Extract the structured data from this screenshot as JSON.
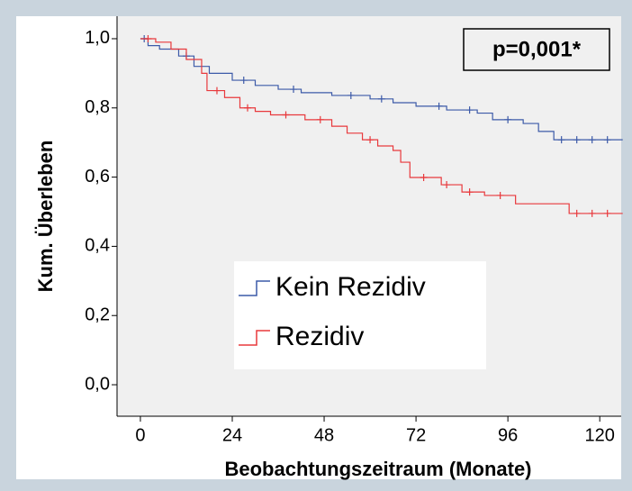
{
  "chart_data": {
    "type": "kaplan-meier",
    "xlabel": "Beobachtungszeitraum (Monate)",
    "ylabel": "Kum. Überleben",
    "annotation": "p=0,001*",
    "xlim": [
      -6.1,
      125.6
    ],
    "ylim": [
      -0.091,
      1.065
    ],
    "xticks": [
      0,
      24,
      48,
      72,
      96,
      120
    ],
    "yticks": [
      {
        "value": 0,
        "label": "0,0"
      },
      {
        "value": 0.2,
        "label": "0,2"
      },
      {
        "value": 0.4,
        "label": "0,4"
      },
      {
        "value": 0.6,
        "label": "0,6"
      },
      {
        "value": 0.8,
        "label": "0,8"
      },
      {
        "value": 1,
        "label": "1,0"
      }
    ],
    "legend": "lower center",
    "series": [
      {
        "name": "Kein Rezidiv",
        "color": "#3c5aa8",
        "x": [
          0,
          2,
          5,
          10,
          14,
          18,
          24,
          30,
          36,
          42,
          50,
          60,
          66,
          72,
          80,
          88,
          92,
          100,
          104,
          108,
          126
        ],
        "values": [
          1.0,
          0.98,
          0.97,
          0.95,
          0.92,
          0.9,
          0.88,
          0.865,
          0.854,
          0.844,
          0.836,
          0.826,
          0.815,
          0.805,
          0.794,
          0.785,
          0.766,
          0.755,
          0.732,
          0.708,
          0.708
        ],
        "censored_x": [
          1,
          12,
          27,
          40,
          55,
          63,
          78,
          86,
          96,
          110,
          114,
          118,
          122
        ],
        "censored_values": [
          1.0,
          0.95,
          0.88,
          0.854,
          0.836,
          0.826,
          0.805,
          0.794,
          0.766,
          0.708,
          0.708,
          0.708,
          0.708
        ]
      },
      {
        "name": "Rezidiv",
        "color": "#e8393c",
        "x": [
          0,
          4,
          8,
          12,
          16,
          17.4,
          22,
          26,
          30,
          34,
          43,
          50,
          54,
          58,
          62,
          66,
          68,
          70.4,
          78.6,
          84,
          89.9,
          98,
          112,
          126
        ],
        "values": [
          1.0,
          0.99,
          0.97,
          0.94,
          0.9,
          0.85,
          0.83,
          0.8,
          0.79,
          0.78,
          0.766,
          0.747,
          0.727,
          0.708,
          0.69,
          0.677,
          0.643,
          0.599,
          0.578,
          0.557,
          0.547,
          0.523,
          0.495,
          0.495
        ],
        "censored_x": [
          2,
          20,
          28,
          38,
          47,
          60,
          74,
          80,
          86,
          94,
          114,
          118,
          122
        ],
        "censored_values": [
          1.0,
          0.85,
          0.8,
          0.78,
          0.766,
          0.708,
          0.599,
          0.578,
          0.557,
          0.547,
          0.495,
          0.495,
          0.495
        ]
      }
    ]
  }
}
